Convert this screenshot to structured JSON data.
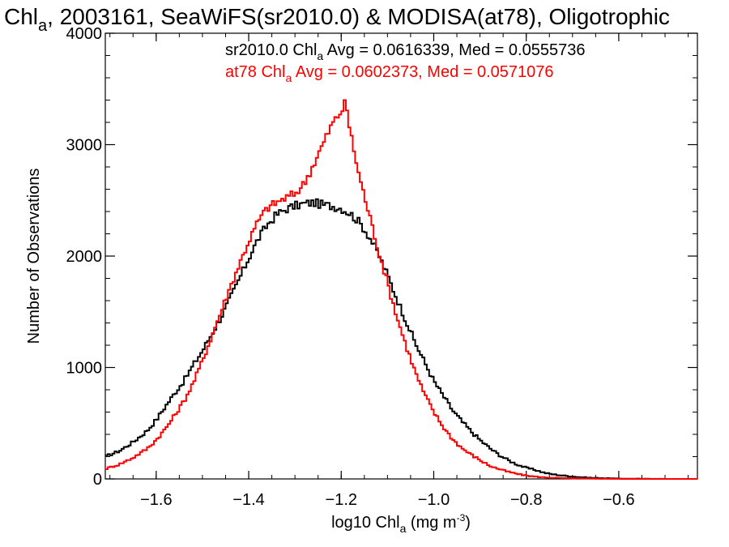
{
  "title": {
    "prefix": "Chl",
    "sub": "a",
    "rest": ", 2003161, SeaWiFS(sr2010.0) & MODISA(at78), Oligotrophic"
  },
  "xlabel": {
    "pre": "log10 Chl",
    "sub": "a",
    "mid": " (mg m",
    "sup": "-3",
    "post": ")"
  },
  "ylabel": "Number of Observations",
  "stats": [
    {
      "pre": "sr2010.0 Chl",
      "sub": "a",
      "post": " Avg = 0.0616339, Med = 0.0555736",
      "color": "#000000"
    },
    {
      "pre": "at78 Chl",
      "sub": "a",
      "post": " Avg = 0.0602373, Med = 0.0571076",
      "color": "#ff0000"
    }
  ],
  "chart_data": {
    "type": "line",
    "step": true,
    "xlim": [
      -1.71,
      -0.43
    ],
    "ylim": [
      0,
      4000
    ],
    "x_ticks": [
      -1.6,
      -1.4,
      -1.2,
      -1.0,
      -0.8,
      -0.6
    ],
    "x_tick_labels": [
      "−1.6",
      "−1.4",
      "−1.2",
      "−1.0",
      "−0.8",
      "−0.6"
    ],
    "y_ticks": [
      0,
      1000,
      2000,
      3000,
      4000
    ],
    "y_tick_labels": [
      "0",
      "1000",
      "2000",
      "3000",
      "4000"
    ],
    "grid": false,
    "series": [
      {
        "name": "sr2010.0",
        "color": "#000000",
        "x": [
          -1.71,
          -1.68,
          -1.65,
          -1.62,
          -1.6,
          -1.58,
          -1.56,
          -1.54,
          -1.52,
          -1.5,
          -1.48,
          -1.46,
          -1.44,
          -1.42,
          -1.4,
          -1.38,
          -1.36,
          -1.34,
          -1.32,
          -1.3,
          -1.28,
          -1.26,
          -1.24,
          -1.22,
          -1.2,
          -1.18,
          -1.16,
          -1.14,
          -1.12,
          -1.1,
          -1.08,
          -1.06,
          -1.04,
          -1.02,
          -1.0,
          -0.98,
          -0.96,
          -0.94,
          -0.92,
          -0.9,
          -0.88,
          -0.86,
          -0.84,
          -0.82,
          -0.8,
          -0.78,
          -0.76,
          -0.74,
          -0.72,
          -0.7,
          -0.68,
          -0.66,
          -0.64,
          -0.62,
          -0.6,
          -0.58,
          -0.56,
          -0.54,
          -0.52,
          -0.5,
          -0.48,
          -0.46,
          -0.44
        ],
        "y": [
          200,
          250,
          330,
          430,
          530,
          650,
          770,
          880,
          1020,
          1150,
          1300,
          1450,
          1620,
          1800,
          1980,
          2150,
          2280,
          2370,
          2420,
          2450,
          2470,
          2480,
          2460,
          2450,
          2430,
          2380,
          2300,
          2180,
          2020,
          1830,
          1620,
          1420,
          1220,
          1050,
          880,
          750,
          620,
          520,
          430,
          350,
          280,
          220,
          170,
          130,
          100,
          80,
          55,
          40,
          30,
          22,
          15,
          10,
          8,
          5,
          3,
          2,
          2,
          1,
          1,
          0,
          0,
          0,
          0
        ]
      },
      {
        "name": "at78",
        "color": "#ff0000",
        "x": [
          -1.71,
          -1.68,
          -1.65,
          -1.62,
          -1.6,
          -1.58,
          -1.56,
          -1.54,
          -1.52,
          -1.5,
          -1.48,
          -1.46,
          -1.44,
          -1.42,
          -1.4,
          -1.38,
          -1.36,
          -1.34,
          -1.32,
          -1.3,
          -1.28,
          -1.26,
          -1.24,
          -1.22,
          -1.2,
          -1.19,
          -1.18,
          -1.16,
          -1.14,
          -1.12,
          -1.1,
          -1.08,
          -1.06,
          -1.04,
          -1.02,
          -1.0,
          -0.98,
          -0.96,
          -0.94,
          -0.92,
          -0.9,
          -0.88,
          -0.86,
          -0.84,
          -0.82,
          -0.8,
          -0.78,
          -0.76,
          -0.74,
          -0.72,
          -0.7,
          -0.68,
          -0.66,
          -0.64,
          -0.62,
          -0.6,
          -0.58,
          -0.56,
          -0.54,
          -0.52,
          -0.5,
          -0.48,
          -0.46,
          -0.44
        ],
        "y": [
          90,
          130,
          190,
          270,
          350,
          450,
          570,
          700,
          860,
          1060,
          1280,
          1500,
          1720,
          1930,
          2130,
          2310,
          2430,
          2480,
          2520,
          2560,
          2650,
          2820,
          3000,
          3180,
          3300,
          3380,
          3100,
          2700,
          2380,
          2060,
          1760,
          1460,
          1200,
          960,
          760,
          600,
          470,
          360,
          280,
          220,
          170,
          120,
          90,
          65,
          45,
          30,
          20,
          14,
          10,
          7,
          5,
          4,
          3,
          2,
          1,
          1,
          0,
          0,
          0,
          0,
          0,
          0,
          0,
          0
        ]
      }
    ]
  }
}
